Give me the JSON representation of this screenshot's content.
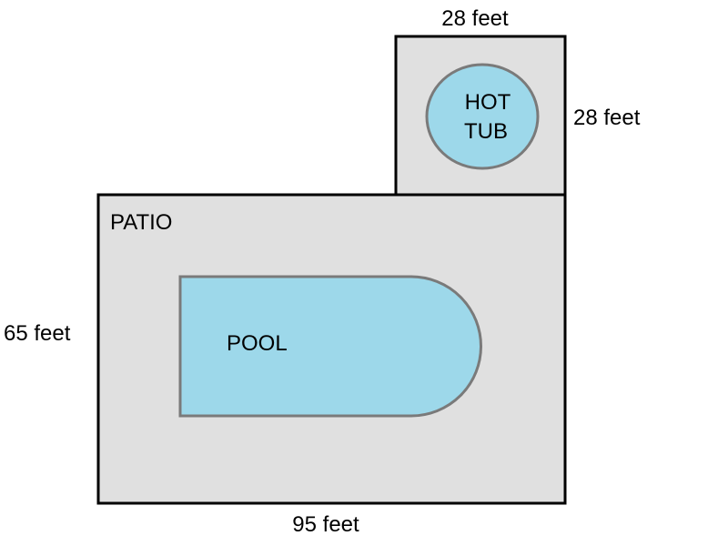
{
  "diagram": {
    "patio": {
      "label": "PATIO",
      "width_label": "95 feet",
      "height_label": "65 feet"
    },
    "hot_tub_area": {
      "width_label": "28 feet",
      "height_label": "28 feet"
    },
    "hot_tub": {
      "label_line1": "HOT",
      "label_line2": "TUB"
    },
    "pool": {
      "label": "POOL"
    }
  },
  "colors": {
    "patio_fill": "#e0e0e0",
    "outline": "#000000",
    "water_fill": "#9dd8ea",
    "water_stroke": "#7a7a7a"
  }
}
